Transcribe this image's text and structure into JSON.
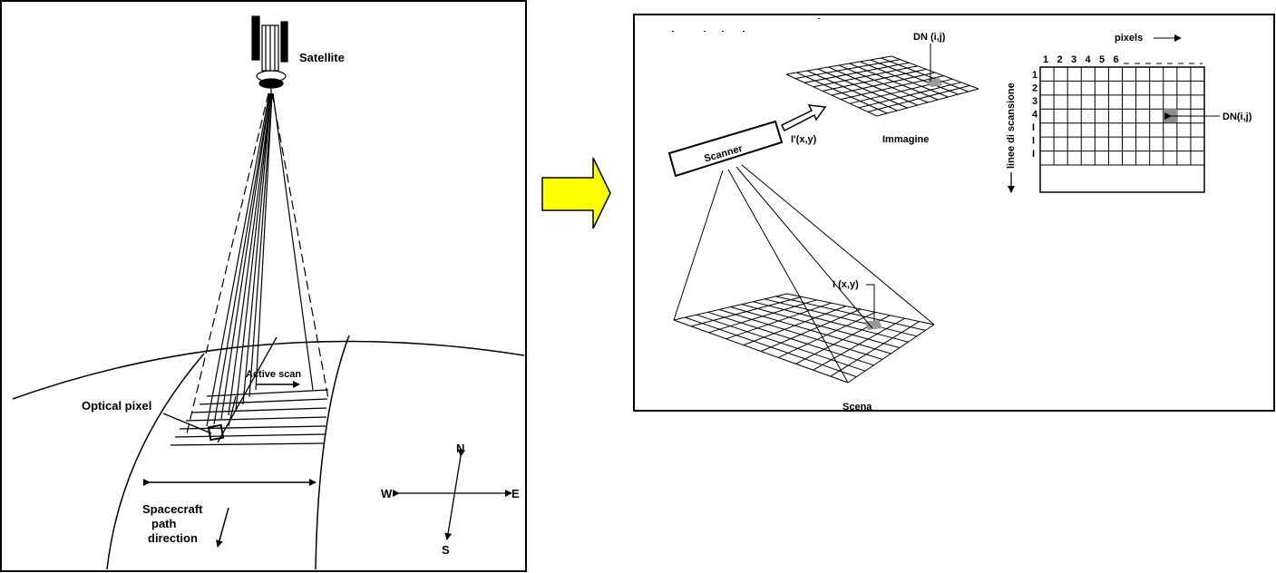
{
  "left_panel": {
    "labels": {
      "satellite": "Satellite",
      "active_scan": "Active scan",
      "optical_pixel": "Optical pixel",
      "spacecraft_line1": "Spacecraft",
      "spacecraft_line2": "path",
      "spacecraft_line3": "direction"
    },
    "compass": {
      "north": "N",
      "south": "S",
      "west": "W",
      "east": "E"
    }
  },
  "arrow": {
    "color": "#FFFF00",
    "stroke": "#000000"
  },
  "right_panel": {
    "labels": {
      "dn_top": "DN (i,j)",
      "scanner": "Scanner",
      "image_coord": "I'(x,y)",
      "immagine": "Immagine",
      "scene_coord": "I (x,y)",
      "scena": "Scena",
      "pixels": "pixels",
      "linee": "linee di scansione",
      "dn_right": "DN(i,j)"
    },
    "column_numbers": [
      "1",
      "2",
      "3",
      "4",
      "5",
      "6"
    ],
    "row_numbers": [
      "1",
      "2",
      "3",
      "4",
      "I",
      "I",
      "I"
    ],
    "highlight_color": "#8c8c8c"
  }
}
